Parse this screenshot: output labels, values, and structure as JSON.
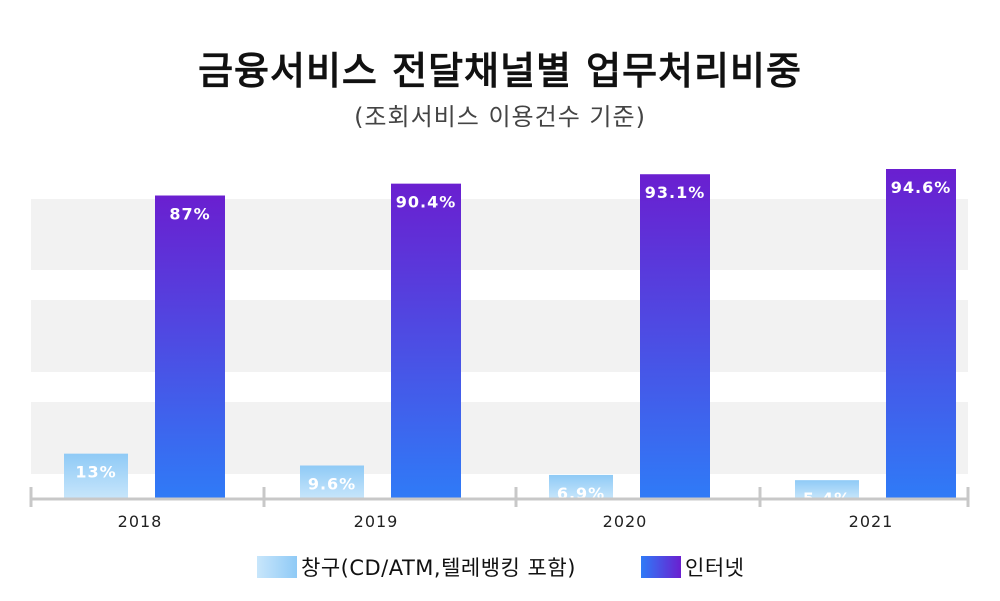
{
  "title": "금융서비스 전달채널별 업무처리비중",
  "subtitle": "(조회서비스 이용건수 기준)",
  "chart_data": {
    "type": "bar",
    "categories": [
      "2018",
      "2019",
      "2020",
      "2021"
    ],
    "series": [
      {
        "name": "창구(CD/ATM,텔레뱅킹 포함)",
        "values": [
          13,
          9.6,
          6.9,
          5.4
        ],
        "labels": [
          "13%",
          "9.6%",
          "6.9%",
          "5.4%"
        ],
        "color_top": "#8fcaf6",
        "color_bottom": "#c8e6fb"
      },
      {
        "name": "인터넷",
        "values": [
          87,
          90.4,
          93.1,
          94.6
        ],
        "labels": [
          "87%",
          "90.4%",
          "93.1%",
          "94.6%"
        ],
        "color_top": "#6a1fd0",
        "color_bottom": "#2f7bf7"
      }
    ],
    "ylim": [
      0,
      100
    ],
    "grid": "alternating horizontal bands",
    "legend_position": "bottom"
  }
}
